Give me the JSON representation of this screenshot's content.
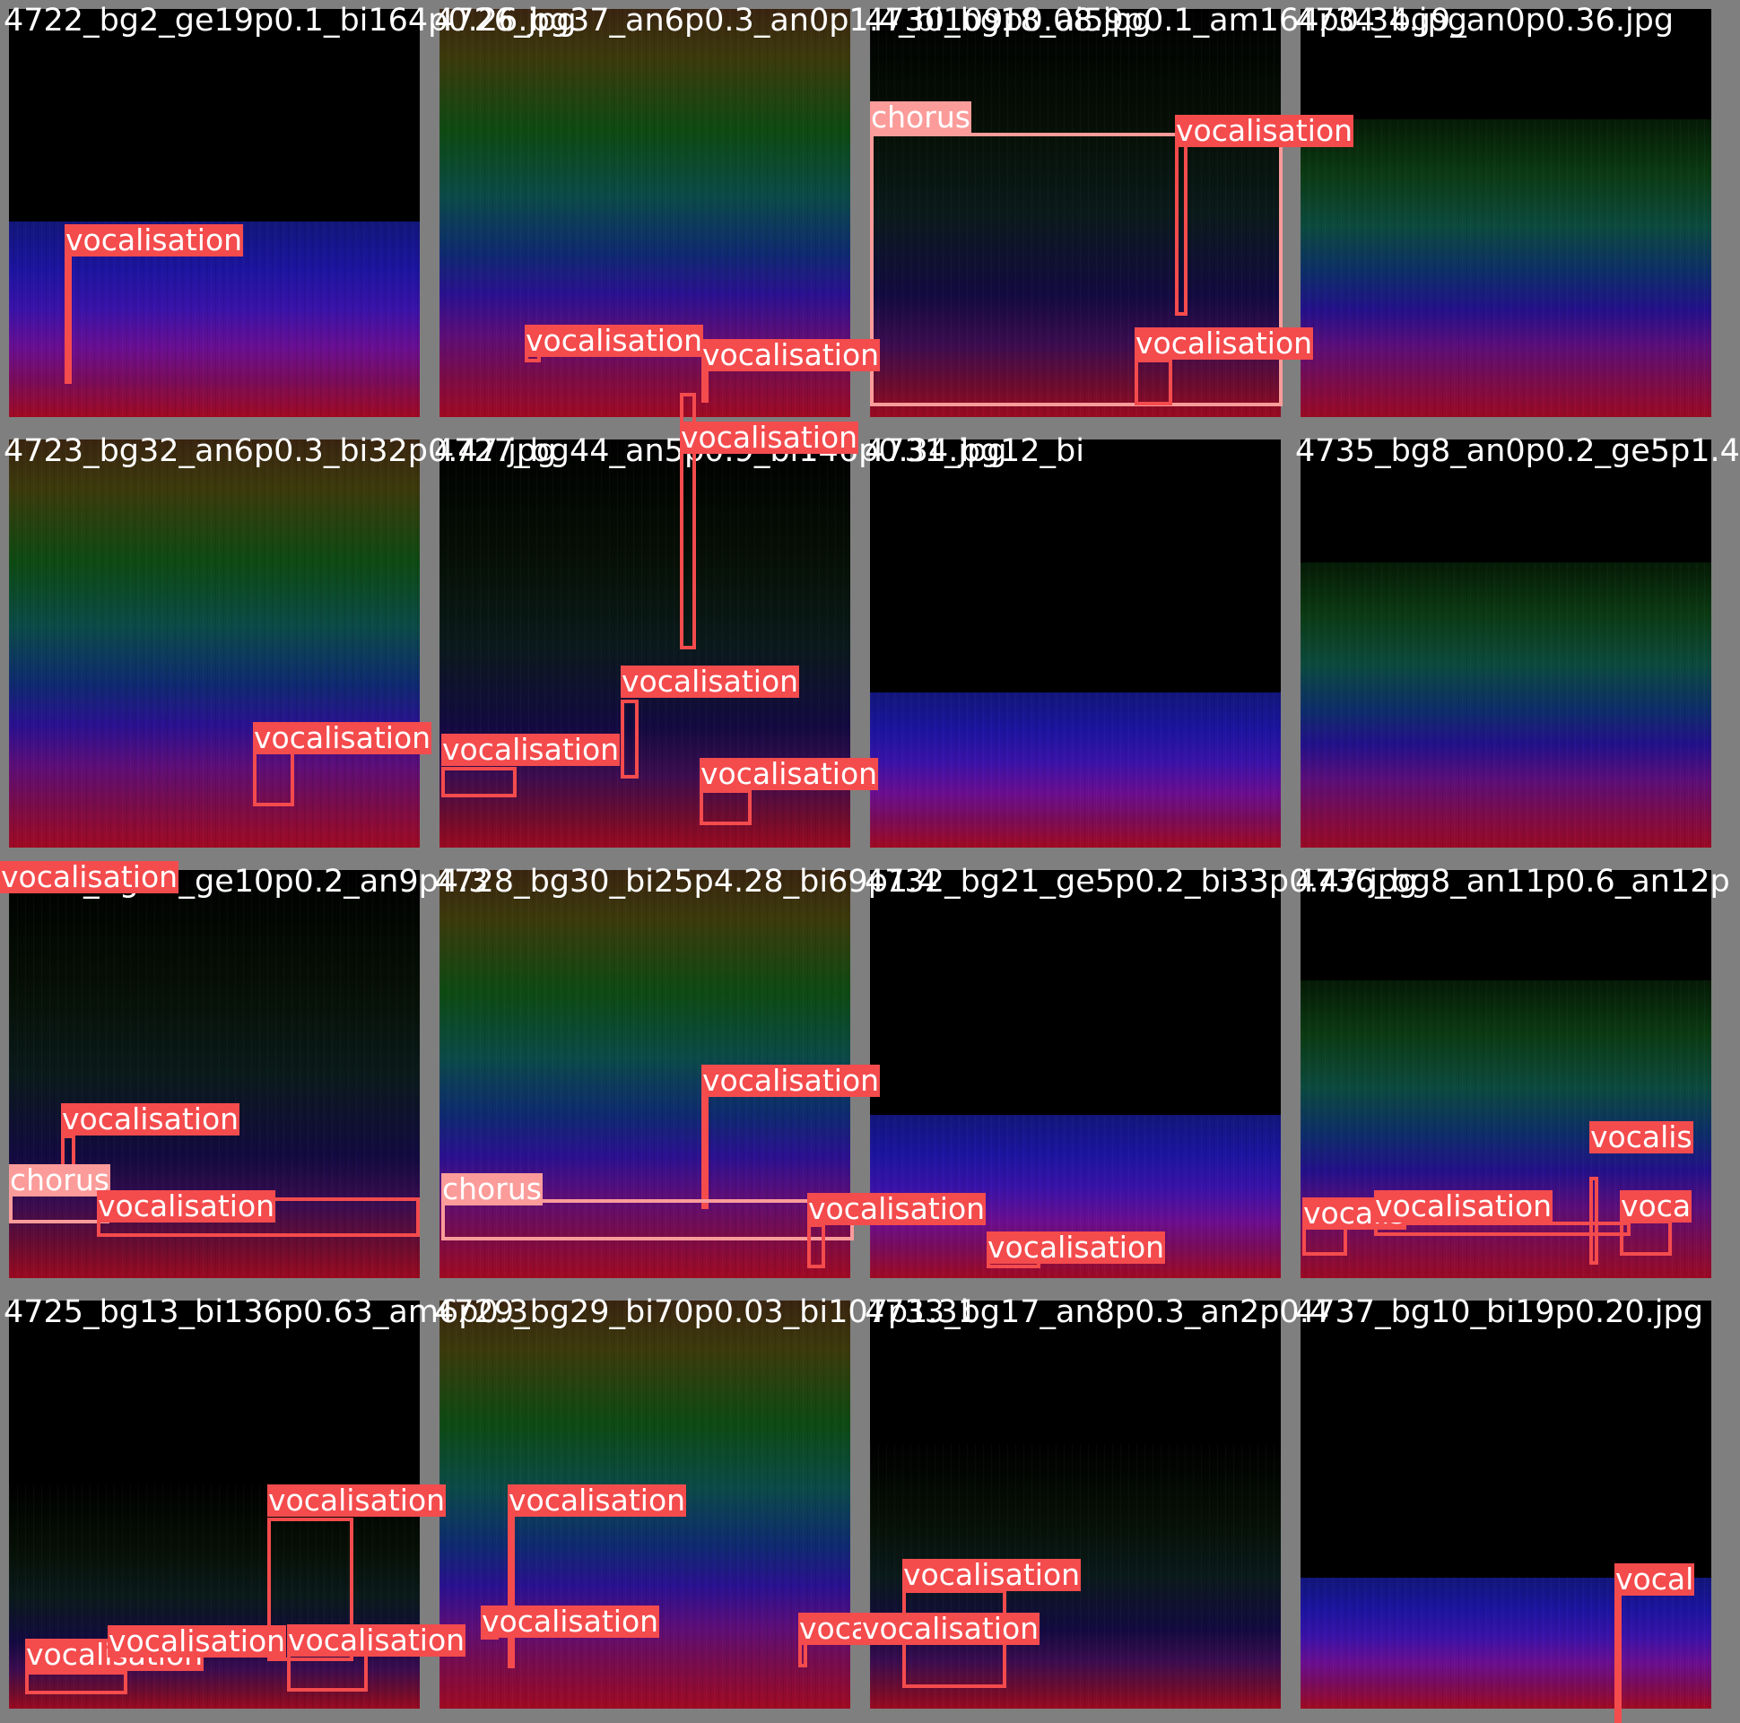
{
  "tiles": [
    {
      "title": "4722_bg2_ge19p0.1_bi164p0.26.jpg",
      "style": "blue",
      "silence": 0.52,
      "detections": [
        {
          "label": "vocalisation"
        }
      ]
    },
    {
      "title": "4726_bg37_an6p0.3_an0p1.4_bi109p0.08.jpg",
      "style": "warm",
      "silence": 0,
      "detections": [
        {
          "label": "vocalisation"
        },
        {
          "label": "vocalisation"
        }
      ]
    },
    {
      "title": "4730_bg18_ai59p0.1_am164p0.34.jpg",
      "style": "dark",
      "silence": 0,
      "detections": [
        {
          "label": "chorus"
        },
        {
          "label": "vocalisation"
        },
        {
          "label": "vocalisation"
        }
      ]
    },
    {
      "title": "4734_bg9_an0p0.36.jpg",
      "style": "normal",
      "silence": 0.27,
      "detections": []
    },
    {
      "title": "4723_bg32_an6p0.3_bi32p0.47.jpg",
      "style": "warm",
      "silence": 0,
      "detections": [
        {
          "label": "vocalisation"
        }
      ]
    },
    {
      "title": "4727_bg44_an5p0.9_bi146p0.34.jpg",
      "style": "dark",
      "silence": 0,
      "detections": [
        {
          "label": "vocalisation"
        },
        {
          "label": "vocalisation"
        },
        {
          "label": "vocalisation"
        },
        {
          "label": "vocalisation"
        }
      ]
    },
    {
      "title": "4731_bg12_bi",
      "style": "blue",
      "silence": 0.62,
      "detections": []
    },
    {
      "title": "4735_bg8_an0p0.2_ge5p1.4",
      "style": "normal",
      "silence": 0.3,
      "detections": []
    },
    {
      "title": "4724_bg44_ge10p0.2_an9p4.3",
      "style": "dark",
      "silence": 0,
      "detections": [
        {
          "label": "vocalisation"
        },
        {
          "label": "chorus"
        },
        {
          "label": "vocalisation"
        },
        {
          "label": "vocalisation"
        }
      ]
    },
    {
      "title": "4728_bg30_bi25p4.28_bi69p1.4",
      "style": "warm",
      "silence": 0,
      "detections": [
        {
          "label": "vocalisation"
        },
        {
          "label": "chorus"
        },
        {
          "label": "vocalisation"
        }
      ]
    },
    {
      "title": "4732_bg21_ge5p0.2_bi33p0.47.jpg",
      "style": "blue",
      "silence": 0.6,
      "detections": [
        {
          "label": "vocalisation"
        }
      ]
    },
    {
      "title": "4736_bg8_an11p0.6_an12p",
      "style": "normal",
      "silence": 0.27,
      "detections": [
        {
          "label": "vocalis"
        },
        {
          "label": "vocalisation"
        },
        {
          "label": "vocalis"
        },
        {
          "label": "voca"
        }
      ]
    },
    {
      "title": "4725_bg13_bi136p0.63_am6p0.3",
      "style": "dark",
      "silence": 0.45,
      "detections": [
        {
          "label": "vocalisation"
        },
        {
          "label": "vocalisation"
        },
        {
          "label": "vocalisation"
        },
        {
          "label": "vocalisation"
        }
      ]
    },
    {
      "title": "4729_bg29_bi70p0.03_bi107p1.31",
      "style": "warm",
      "silence": 0,
      "detections": [
        {
          "label": "vocalisation"
        },
        {
          "label": "vocalisation"
        },
        {
          "label": "vocalisation"
        }
      ]
    },
    {
      "title": "4733_bg17_an8p0.3_an2p0.4",
      "style": "dark",
      "silence": 0.35,
      "detections": [
        {
          "label": "vocalisation"
        },
        {
          "label": "vocalisation"
        }
      ]
    },
    {
      "title": "4737_bg10_bi19p0.20.jpg",
      "style": "blue",
      "silence": 0.68,
      "detections": [
        {
          "label": "vocal"
        }
      ]
    }
  ]
}
